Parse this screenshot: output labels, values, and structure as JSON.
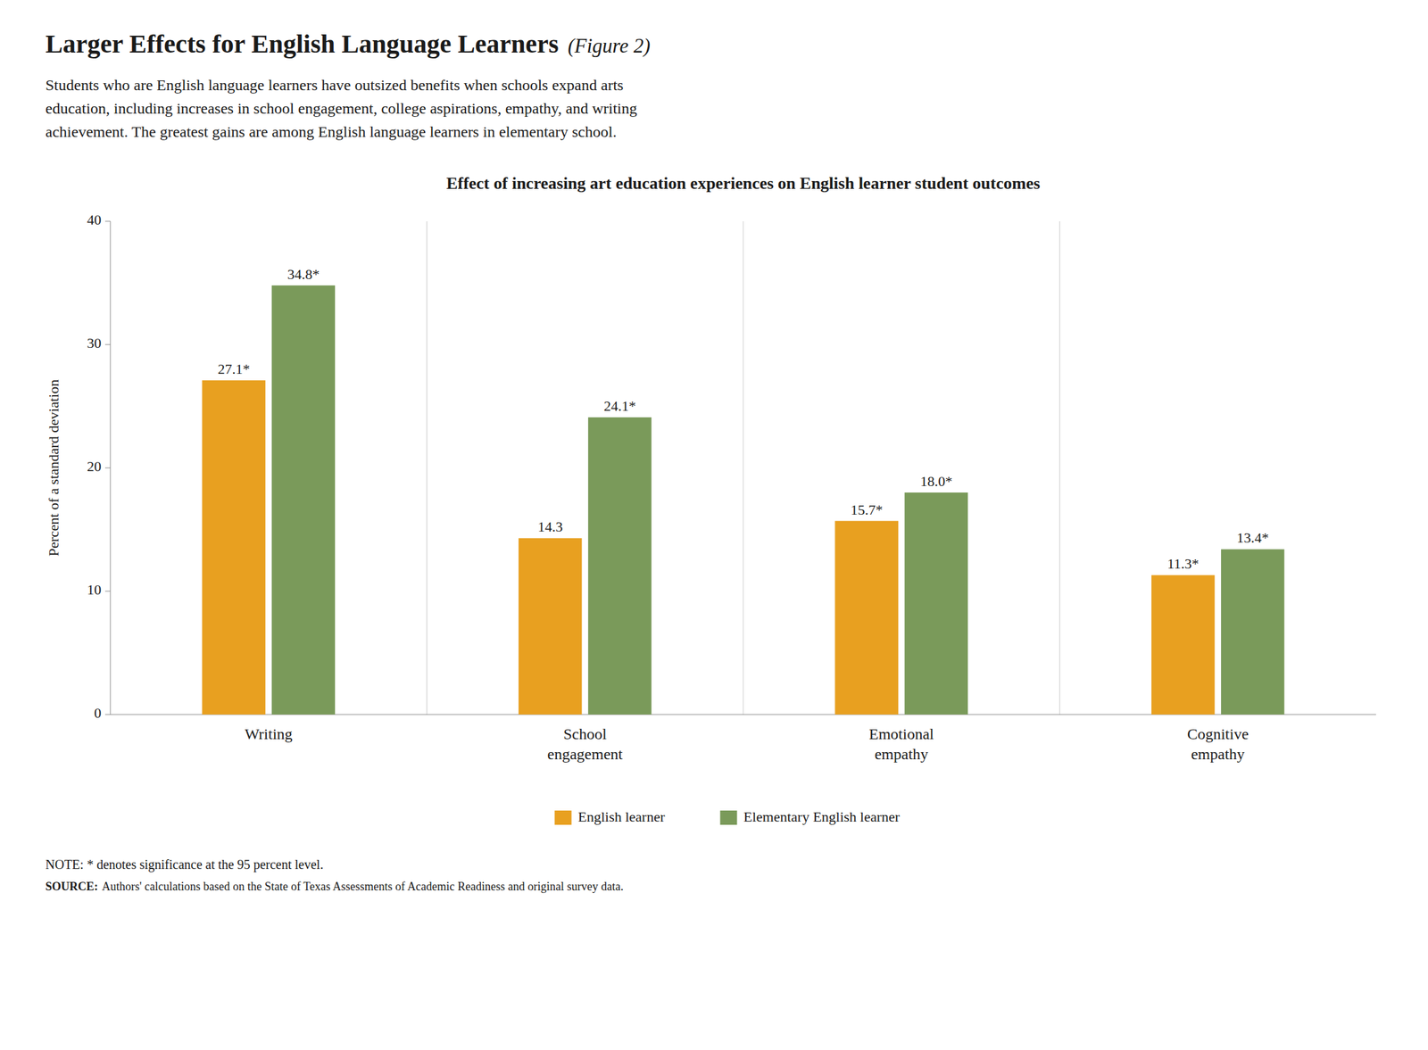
{
  "header": {
    "title": "Larger Effects for English Language Learners",
    "title_italic": "(Figure 2)",
    "subtitle": "Students who are English language learners have outsized benefits when schools expand arts\neducation, including increases in school engagement, college aspirations, empathy, and writing\nachievement. The greatest gains are among English language learners in elementary school."
  },
  "chart_data": {
    "type": "bar",
    "title": "Effect of increasing art education experiences on English learner student outcomes",
    "categories": [
      "Writing",
      "School\nengagement",
      "Emotional\nempathy",
      "Cognitive\nempathy"
    ],
    "series": [
      {
        "name": "English learner",
        "color": "#E8A020",
        "values": [
          27.1,
          14.3,
          15.7,
          11.3
        ],
        "value_labels": [
          "27.1*",
          "14.3",
          "15.7*",
          "11.3*"
        ]
      },
      {
        "name": "Elementary English learner",
        "color": "#7A9A5A",
        "values": [
          34.8,
          24.1,
          18.0,
          13.4
        ],
        "value_labels": [
          "34.8*",
          "24.1*",
          "18.0*",
          "13.4*"
        ]
      }
    ],
    "ylabel": "Percent of a standard deviation",
    "ylim": [
      0,
      40
    ],
    "yticks": [
      0,
      10,
      20,
      30,
      40
    ],
    "grid": false,
    "legend": "bottom",
    "data_labels": true
  },
  "footer": {
    "note": "NOTE: * denotes significance at the 95 percent level.",
    "source_label": "SOURCE:",
    "source": "Authors' calculations based on the State of Texas Assessments of Academic Readiness and original survey data."
  }
}
